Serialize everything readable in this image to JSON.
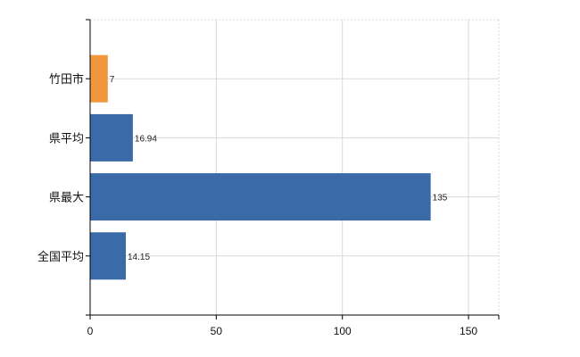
{
  "chart_data": {
    "type": "bar",
    "orientation": "horizontal",
    "categories": [
      "竹田市",
      "県平均",
      "県最大",
      "全国平均"
    ],
    "values": [
      7,
      16.94,
      135,
      14.15
    ],
    "value_labels": [
      "7",
      "16.94",
      "135",
      "14.15"
    ],
    "bar_colors": [
      "#f0963c",
      "#3a6aa8",
      "#3a6aa8",
      "#3a6aa8"
    ],
    "xlim": [
      0,
      162
    ],
    "x_ticks": [
      0,
      50,
      100,
      150
    ],
    "x_tick_labels": [
      "0",
      "50",
      "100",
      "150"
    ],
    "grid": true,
    "title": "",
    "xlabel": "",
    "ylabel": ""
  }
}
